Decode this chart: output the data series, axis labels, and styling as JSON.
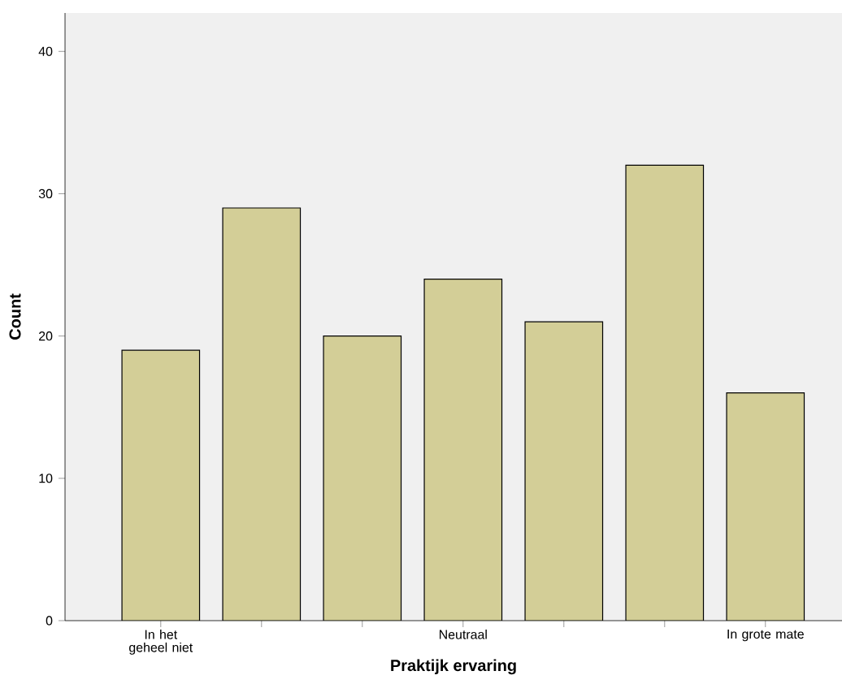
{
  "chart_data": {
    "type": "bar",
    "xlabel": "Praktijk ervaring",
    "ylabel": "Count",
    "categories": [
      "In het geheel niet",
      null,
      null,
      "Neutraal",
      null,
      null,
      "In grote mate"
    ],
    "values": [
      19,
      29,
      20,
      24,
      21,
      32,
      16
    ],
    "color": "#d3ce97",
    "ylim": [
      0,
      42.7
    ],
    "yticks": [
      0,
      10,
      20,
      30,
      40
    ]
  }
}
